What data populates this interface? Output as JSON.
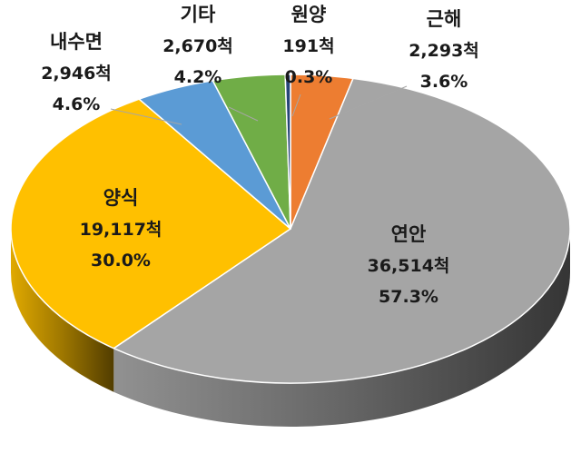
{
  "chart_data": {
    "type": "pie",
    "three_d": true,
    "slices": [
      {
        "name": "근해",
        "count": 2293,
        "count_label": "2,293척",
        "percent": 3.6,
        "percent_label": "3.6%",
        "color": "#ED7D31"
      },
      {
        "name": "연안",
        "count": 36514,
        "count_label": "36,514척",
        "percent": 57.3,
        "percent_label": "57.3%",
        "color": "#A5A5A5"
      },
      {
        "name": "양식",
        "count": 19117,
        "count_label": "19,117척",
        "percent": 30.0,
        "percent_label": "30.0%",
        "color": "#FFC000"
      },
      {
        "name": "내수면",
        "count": 2946,
        "count_label": "2,946척",
        "percent": 4.6,
        "percent_label": "4.6%",
        "color": "#5B9BD5"
      },
      {
        "name": "기타",
        "count": 2670,
        "count_label": "2,670척",
        "percent": 4.2,
        "percent_label": "4.2%",
        "color": "#70AD47"
      },
      {
        "name": "원양",
        "count": 191,
        "count_label": "191척",
        "percent": 0.3,
        "percent_label": "0.3%",
        "color": "#264478"
      }
    ]
  }
}
